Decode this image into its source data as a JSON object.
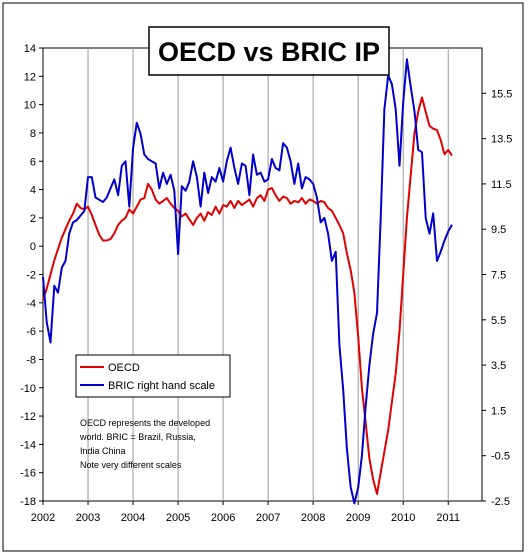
{
  "chart_data": {
    "type": "line",
    "title": "OECD vs BRIC IP",
    "xlabel": "",
    "ylabel": "",
    "x_ticks": [
      "2002",
      "2003",
      "2004",
      "2005",
      "2006",
      "2007",
      "2008",
      "2009",
      "2010",
      "2011"
    ],
    "x_range": [
      2002,
      2011.75
    ],
    "y_left": {
      "range": [
        -18,
        14
      ],
      "ticks": [
        "14",
        "12",
        "10",
        "8",
        "6",
        "4",
        "2",
        "0",
        "-2",
        "-4",
        "-6",
        "-8",
        "-10",
        "-12",
        "-14",
        "-16",
        "-18"
      ]
    },
    "y_right": {
      "range": [
        -2.5,
        17.5
      ],
      "ticks": [
        "15.5",
        "13.5",
        "11.5",
        "9.5",
        "7.5",
        "5.5",
        "3.5",
        "1.5",
        "-0.5",
        "-2.5"
      ]
    },
    "grid": "vertical",
    "legend_position": "lower-left",
    "annotation": [
      "OECD represents the developed",
      "world. BRIC = Brazil, Russia,",
      "India China",
      "Note very different scales"
    ],
    "series": [
      {
        "name": "OECD",
        "color": "#e00000",
        "axis": "left",
        "x": [
          2002.0,
          2002.083,
          2002.167,
          2002.25,
          2002.333,
          2002.417,
          2002.5,
          2002.583,
          2002.667,
          2002.75,
          2002.833,
          2002.917,
          2003.0,
          2003.083,
          2003.167,
          2003.25,
          2003.333,
          2003.417,
          2003.5,
          2003.583,
          2003.667,
          2003.75,
          2003.833,
          2003.917,
          2004.0,
          2004.083,
          2004.167,
          2004.25,
          2004.333,
          2004.417,
          2004.5,
          2004.583,
          2004.667,
          2004.75,
          2004.833,
          2004.917,
          2005.0,
          2005.083,
          2005.167,
          2005.25,
          2005.333,
          2005.417,
          2005.5,
          2005.583,
          2005.667,
          2005.75,
          2005.833,
          2005.917,
          2006.0,
          2006.083,
          2006.167,
          2006.25,
          2006.333,
          2006.417,
          2006.5,
          2006.583,
          2006.667,
          2006.75,
          2006.833,
          2006.917,
          2007.0,
          2007.083,
          2007.167,
          2007.25,
          2007.333,
          2007.417,
          2007.5,
          2007.583,
          2007.667,
          2007.75,
          2007.833,
          2007.917,
          2008.0,
          2008.083,
          2008.167,
          2008.25,
          2008.333,
          2008.417,
          2008.5,
          2008.583,
          2008.667,
          2008.75,
          2008.833,
          2008.917,
          2009.0,
          2009.083,
          2009.167,
          2009.25,
          2009.333,
          2009.417,
          2009.5,
          2009.583,
          2009.667,
          2009.75,
          2009.833,
          2009.917,
          2010.0,
          2010.083,
          2010.167,
          2010.25,
          2010.333,
          2010.417,
          2010.5,
          2010.583,
          2010.667,
          2010.75,
          2010.833,
          2010.917,
          2011.0,
          2011.083
        ],
        "values": [
          -3.8,
          -3.0,
          -2.0,
          -1.0,
          -0.2,
          0.6,
          1.2,
          1.8,
          2.3,
          3.0,
          2.7,
          2.6,
          2.8,
          2.2,
          1.5,
          0.8,
          0.4,
          0.4,
          0.5,
          0.9,
          1.5,
          1.8,
          2.0,
          2.6,
          2.3,
          2.8,
          3.3,
          3.4,
          4.4,
          4.0,
          3.3,
          3.0,
          3.2,
          3.4,
          3.0,
          2.7,
          2.5,
          2.1,
          2.3,
          1.9,
          1.5,
          2.0,
          2.3,
          1.8,
          2.4,
          2.2,
          2.8,
          2.3,
          2.9,
          2.8,
          3.2,
          2.7,
          3.2,
          2.9,
          3.1,
          3.3,
          2.8,
          3.4,
          3.6,
          3.2,
          4.0,
          4.1,
          3.6,
          3.2,
          3.5,
          3.4,
          3.0,
          3.2,
          3.1,
          3.4,
          3.0,
          3.3,
          3.2,
          3.0,
          3.2,
          3.1,
          2.7,
          2.5,
          2.0,
          1.5,
          0.9,
          -0.5,
          -1.7,
          -3.3,
          -6.4,
          -10.0,
          -12.5,
          -15.0,
          -16.5,
          -17.5,
          -16.0,
          -14.5,
          -13.0,
          -11.0,
          -9.0,
          -6.0,
          -2.0,
          2.0,
          5.0,
          8.0,
          9.5,
          10.5,
          9.5,
          8.5,
          8.3,
          8.2,
          7.5,
          6.5,
          6.8,
          6.4
        ]
      },
      {
        "name": "BRIC right hand scale",
        "color": "#0000cc",
        "axis": "right",
        "x": [
          2002.0,
          2002.083,
          2002.167,
          2002.25,
          2002.333,
          2002.417,
          2002.5,
          2002.583,
          2002.667,
          2002.75,
          2002.833,
          2002.917,
          2003.0,
          2003.083,
          2003.167,
          2003.25,
          2003.333,
          2003.417,
          2003.5,
          2003.583,
          2003.667,
          2003.75,
          2003.833,
          2003.917,
          2004.0,
          2004.083,
          2004.167,
          2004.25,
          2004.333,
          2004.417,
          2004.5,
          2004.583,
          2004.667,
          2004.75,
          2004.833,
          2004.917,
          2005.0,
          2005.083,
          2005.167,
          2005.25,
          2005.333,
          2005.417,
          2005.5,
          2005.583,
          2005.667,
          2005.75,
          2005.833,
          2005.917,
          2006.0,
          2006.083,
          2006.167,
          2006.25,
          2006.333,
          2006.417,
          2006.5,
          2006.583,
          2006.667,
          2006.75,
          2006.833,
          2006.917,
          2007.0,
          2007.083,
          2007.167,
          2007.25,
          2007.333,
          2007.417,
          2007.5,
          2007.583,
          2007.667,
          2007.75,
          2007.833,
          2007.917,
          2008.0,
          2008.083,
          2008.167,
          2008.25,
          2008.333,
          2008.417,
          2008.5,
          2008.583,
          2008.667,
          2008.75,
          2008.833,
          2008.917,
          2009.0,
          2009.083,
          2009.167,
          2009.25,
          2009.333,
          2009.417,
          2009.5,
          2009.583,
          2009.667,
          2009.75,
          2009.833,
          2009.917,
          2010.0,
          2010.083,
          2010.167,
          2010.25,
          2010.333,
          2010.417,
          2010.5,
          2010.583,
          2010.667,
          2010.75,
          2010.833,
          2010.917,
          2011.0,
          2011.083
        ],
        "values": [
          7.4,
          5.4,
          4.5,
          7.0,
          6.7,
          7.8,
          8.1,
          9.3,
          9.8,
          9.9,
          10.1,
          10.3,
          11.8,
          11.8,
          10.9,
          10.8,
          10.7,
          10.9,
          11.3,
          11.7,
          11.0,
          12.3,
          12.5,
          10.5,
          13.1,
          14.2,
          13.7,
          12.8,
          12.6,
          12.5,
          12.4,
          11.3,
          12.0,
          11.5,
          11.9,
          11.2,
          8.4,
          11.4,
          11.2,
          11.6,
          12.5,
          11.8,
          10.5,
          12.0,
          11.1,
          11.8,
          11.6,
          12.2,
          11.6,
          12.5,
          13.1,
          12.2,
          11.5,
          12.4,
          12.3,
          11.0,
          12.8,
          11.9,
          12.0,
          11.6,
          11.7,
          12.6,
          12.2,
          12.1,
          13.3,
          13.1,
          12.5,
          11.5,
          12.4,
          11.3,
          11.8,
          11.7,
          11.5,
          10.9,
          9.8,
          10.0,
          9.3,
          8.1,
          8.5,
          4.4,
          2.4,
          -0.2,
          -1.9,
          -2.6,
          -1.9,
          -0.5,
          1.7,
          3.5,
          4.9,
          5.8,
          10.0,
          14.8,
          16.3,
          15.9,
          14.8,
          12.3,
          15.1,
          17.0,
          15.8,
          14.7,
          13.0,
          12.9,
          10.0,
          9.3,
          10.2,
          8.1,
          8.5,
          9.0,
          9.4,
          9.7
        ]
      }
    ]
  }
}
